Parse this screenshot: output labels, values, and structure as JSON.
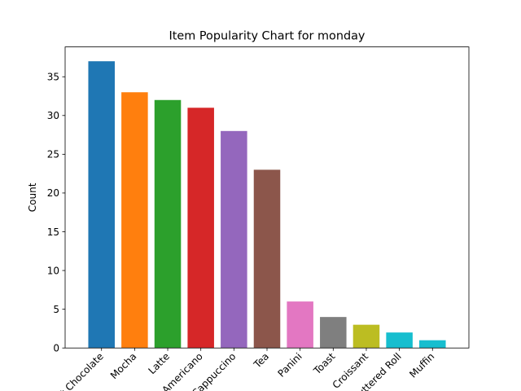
{
  "chart_data": {
    "type": "bar",
    "title": "Item Popularity Chart for monday",
    "xlabel": "",
    "ylabel": "Count",
    "ylim": [
      0,
      38.85
    ],
    "yticks": [
      0,
      5,
      10,
      15,
      20,
      25,
      30,
      35
    ],
    "grid": false,
    "categories": [
      "Hot Chocolate",
      "Mocha",
      "Latte",
      "Americano",
      "Cappuccino",
      "Tea",
      "Panini",
      "Toast",
      "Croissant",
      "Buttered Roll",
      "Muffin"
    ],
    "values": [
      37,
      33,
      32,
      31,
      28,
      23,
      6,
      4,
      3,
      2,
      1
    ],
    "colors": [
      "#1f77b4",
      "#ff7f0e",
      "#2ca02c",
      "#d62728",
      "#9467bd",
      "#8c564b",
      "#e377c2",
      "#7f7f7f",
      "#bcbd22",
      "#17becf",
      "#17becf"
    ]
  }
}
